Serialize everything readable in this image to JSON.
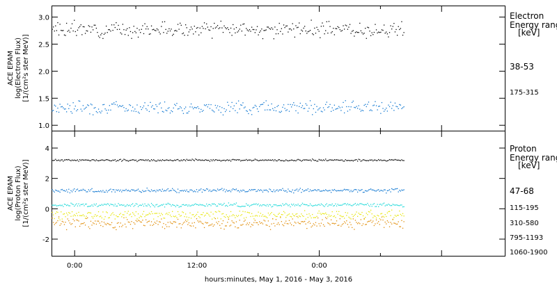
{
  "chart_data": [
    {
      "type": "scatter",
      "panel": "electron",
      "ylabel_lines": [
        "ACE EPAM",
        "log(Electron Flux)",
        "[1/(cm²s ster MeV)]"
      ],
      "ylim": [
        0.9,
        3.2
      ],
      "yticks": [
        1.0,
        1.5,
        2.0,
        2.5,
        3.0
      ],
      "ytick_labels": [
        "1.0",
        "1.5",
        "2.0",
        "2.5",
        "3.0"
      ],
      "legend_title": [
        "Electron",
        "Energy ranges",
        "[keV]"
      ],
      "series": [
        {
          "name": "38-53",
          "color": "#000000",
          "mean": 2.77,
          "spread": 0.08,
          "seed": 3
        },
        {
          "name": "175-315",
          "color": "#0a74d0",
          "mean": 1.33,
          "spread": 0.07,
          "seed": 7
        }
      ]
    },
    {
      "type": "scatter",
      "panel": "proton",
      "ylabel_lines": [
        "ACE EPAM",
        "log(Proton Flux)",
        "[1/(cm²s ster MeV)]"
      ],
      "ylim": [
        -3.1,
        5.1
      ],
      "yticks": [
        -2,
        0,
        2,
        4
      ],
      "ytick_labels": [
        "-2",
        "0",
        "2",
        "4"
      ],
      "legend_title": [
        "Proton",
        "Energy ranges",
        "[keV]"
      ],
      "series": [
        {
          "name": "47-68",
          "color": "#000000",
          "mean": 3.2,
          "spread": 0.04,
          "seed": 11
        },
        {
          "name": "115-195",
          "color": "#0a74d0",
          "mean": 1.2,
          "spread": 0.08,
          "seed": 13
        },
        {
          "name": "310-580",
          "color": "#18d8d8",
          "mean": 0.25,
          "spread": 0.07,
          "seed": 17
        },
        {
          "name": "795-1193",
          "color": "#e6e600",
          "mean": -0.4,
          "spread": 0.18,
          "seed": 19
        },
        {
          "name": "1060-1900",
          "color": "#e08a00",
          "mean": -0.95,
          "spread": 0.22,
          "seed": 23
        }
      ]
    }
  ],
  "x_axis": {
    "xlim_hours": [
      -2.2,
      42.2
    ],
    "data_range_hours": [
      -2.2,
      32.3
    ],
    "tick_hours": [
      0,
      12,
      24,
      36
    ],
    "minor_tick_hours": [
      6,
      18,
      30
    ],
    "tick_labels": [
      "0:00",
      "12:00",
      "0:00"
    ],
    "labeled_ticks": [
      0,
      12,
      24
    ],
    "xlabel": "hours:minutes, May  1, 2016 - May  3, 2016"
  }
}
